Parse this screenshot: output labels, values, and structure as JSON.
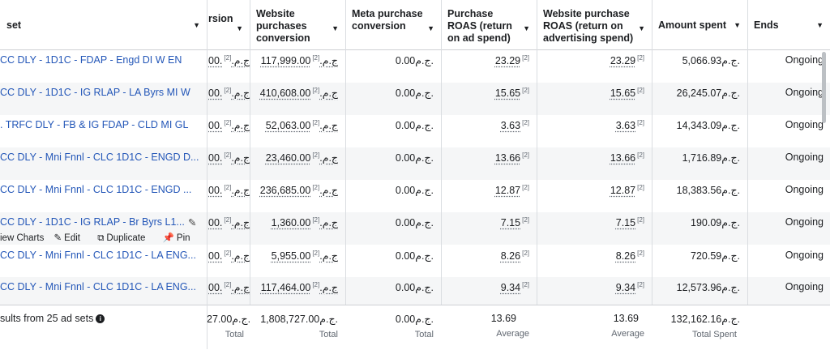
{
  "headers": {
    "ad_set": "set",
    "conversion": "rsion",
    "website_purchases": "Website purchases conversion",
    "meta_purchase": "Meta purchase conversion",
    "purchase_roas": "Purchase ROAS (return on ad spend)",
    "website_roas": "Website purchase ROAS (return on advertising spend)",
    "amount_spent": "Amount spent",
    "ends": "Ends"
  },
  "rows": [
    {
      "name": "CC DLY - 1D1C - FDAP - Engd DI W EN",
      "conv": "00.ج.م.",
      "wp": "117,999.00ج.م.",
      "mp": "0.00ج.م.",
      "proas": "23.29",
      "wroas": "23.29",
      "spent": "5,066.93ج.م.",
      "ends": "Ongoing"
    },
    {
      "name": "CC DLY - 1D1C - IG RLAP - LA Byrs MI W",
      "conv": "00.ج.م.",
      "wp": "410,608.00ج.م.",
      "mp": "0.00ج.م.",
      "proas": "15.65",
      "wroas": "15.65",
      "spent": "26,245.07ج.م.",
      "ends": "Ongoing"
    },
    {
      "name": ". TRFC DLY - FB & IG FDAP - CLD MI GL",
      "conv": "00.ج.م.",
      "wp": "52,063.00ج.م.",
      "mp": "0.00ج.م.",
      "proas": "3.63",
      "wroas": "3.63",
      "spent": "14,343.09ج.م.",
      "ends": "Ongoing"
    },
    {
      "name": "CC DLY - Mni Fnnl - CLC 1D1C - ENGD D...",
      "conv": "00.ج.م.",
      "wp": "23,460.00ج.م.",
      "mp": "0.00ج.م.",
      "proas": "13.66",
      "wroas": "13.66",
      "spent": "1,716.89ج.م.",
      "ends": "Ongoing"
    },
    {
      "name": "CC DLY - Mni Fnnl - CLC 1D1C - ENGD ...",
      "conv": "00.ج.م.",
      "wp": "236,685.00ج.م.",
      "mp": "0.00ج.م.",
      "proas": "12.87",
      "wroas": "12.87",
      "spent": "18,383.56ج.م.",
      "ends": "Ongoing"
    },
    {
      "name": "CC DLY - 1D1C - IG RLAP - Br Byrs L1...",
      "conv": "00.ج.م.",
      "wp": "1,360.00ج.م.",
      "mp": "0.00ج.م.",
      "proas": "7.15",
      "wroas": "7.15",
      "spent": "190.09ج.م.",
      "ends": "Ongoing"
    },
    {
      "name": "CC DLY - Mni Fnnl - CLC 1D1C - LA ENG...",
      "conv": "00.ج.م.",
      "wp": "5,955.00ج.م.",
      "mp": "0.00ج.م.",
      "proas": "8.26",
      "wroas": "8.26",
      "spent": "720.59ج.م.",
      "ends": "Ongoing"
    },
    {
      "name": "CC DLY - Mni Fnnl - CLC 1D1C - LA ENG...",
      "conv": "00.ج.م.",
      "wp": "117,464.00ج.م.",
      "mp": "0.00ج.م.",
      "proas": "9.34",
      "wroas": "9.34",
      "spent": "12,573.96ج.م.",
      "ends": "Ongoing"
    }
  ],
  "footnote_marker": "[2]",
  "hover_actions": {
    "view_charts": "iew Charts",
    "edit": "Edit",
    "duplicate": "Duplicate",
    "pin": "Pin"
  },
  "footer": {
    "results_label": "sults from 25 ad sets",
    "conv_total": "27.00ج.م.",
    "wp_total": "1,808,727.00ج.م.",
    "mp_total": "0.00ج.م.",
    "proas_avg": "13.69",
    "wroas_avg": "13.69",
    "spent_total": "132,162.16ج.م.",
    "total_label": "Total",
    "average_label": "Average",
    "total_spent_label": "Total Spent"
  }
}
